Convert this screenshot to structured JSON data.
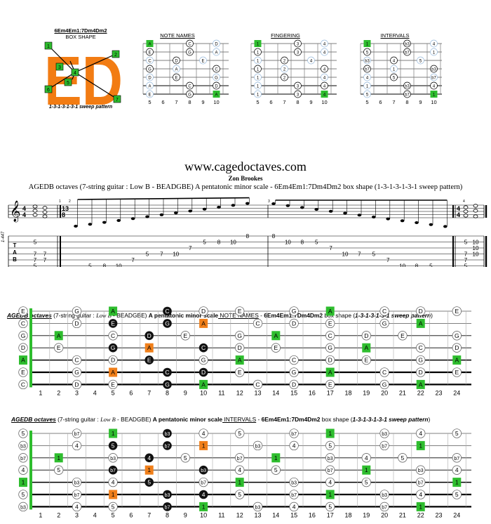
{
  "header": {
    "box_code": "6Em4Em1:7Dm4Dm2",
    "box_shape_label": "BOX SHAPE",
    "sweep_label": "1-3-1-3-1-3-1 sweep pattern",
    "diagram_titles": [
      "NOTE NAMES",
      "FINGERING",
      "INTERVALS"
    ],
    "big_letters": "ED",
    "shape_numbers": [
      "1",
      "2",
      "3",
      "4",
      "5",
      "6",
      "7"
    ]
  },
  "site": {
    "url": "www.cagedoctaves.com",
    "author": "Zon Brookes",
    "subtitle": "AGEDB octaves (7-string guitar : Low B - BEADGBE) A pentatonic minor scale  - 6Em4Em1:7Dm4Dm2 box shape (1-3-1-3-1-3-1 sweep pattern)"
  },
  "staff": {
    "left_label": "1-447",
    "time_4_4": "4/4",
    "time_13_8": "13/8",
    "measure_numbers": [
      "1",
      "2",
      "3",
      "4"
    ],
    "tab_letters": [
      "T",
      "A",
      "B"
    ],
    "tab_m1": [
      {
        "str": 1,
        "fret": "5"
      },
      {
        "str": 3,
        "fret": "7"
      },
      {
        "str": 3,
        "fret": "7",
        "col": 1
      },
      {
        "str": 4,
        "fret": "7"
      },
      {
        "str": 4,
        "fret": "7",
        "col": 1
      },
      {
        "str": 5,
        "fret": "5"
      },
      {
        "str": 6,
        "fret": "10",
        "col": 1
      }
    ],
    "tab_asc": [
      {
        "str": 6,
        "fret": "8"
      },
      {
        "str": 5,
        "fret": "5"
      },
      {
        "str": 5,
        "fret": "8"
      },
      {
        "str": 5,
        "fret": "10"
      },
      {
        "str": 4,
        "fret": "7"
      },
      {
        "str": 3,
        "fret": "5"
      },
      {
        "str": 3,
        "fret": "7"
      },
      {
        "str": 3,
        "fret": "10"
      },
      {
        "str": 2,
        "fret": "7"
      },
      {
        "str": 1,
        "fret": "5"
      },
      {
        "str": 1,
        "fret": "8"
      },
      {
        "str": 1,
        "fret": "10"
      },
      {
        "str": 0,
        "fret": "8"
      }
    ],
    "tab_desc": [
      {
        "str": 0,
        "fret": "8"
      },
      {
        "str": 1,
        "fret": "10"
      },
      {
        "str": 1,
        "fret": "8"
      },
      {
        "str": 1,
        "fret": "5"
      },
      {
        "str": 2,
        "fret": "7"
      },
      {
        "str": 3,
        "fret": "10"
      },
      {
        "str": 3,
        "fret": "7"
      },
      {
        "str": 3,
        "fret": "5"
      },
      {
        "str": 4,
        "fret": "7"
      },
      {
        "str": 5,
        "fret": "10"
      },
      {
        "str": 5,
        "fret": "8"
      },
      {
        "str": 5,
        "fret": "5"
      },
      {
        "str": 6,
        "fret": "8"
      }
    ],
    "tab_m4": [
      {
        "str": 1,
        "fret": "5"
      },
      {
        "str": 1,
        "fret": "10",
        "col": 1
      },
      {
        "str": 2,
        "fret": "10",
        "col": 1
      },
      {
        "str": 3,
        "fret": "7"
      },
      {
        "str": 3,
        "fret": "10",
        "col": 1
      },
      {
        "str": 4,
        "fret": "7"
      },
      {
        "str": 5,
        "fret": "5"
      },
      {
        "str": 6,
        "fret": "10",
        "col": 1
      }
    ]
  },
  "board1": {
    "title_parts": [
      "AGEDB octaves",
      " (7-string guitar : ",
      "Low B",
      " - BEADGBE) ",
      "A pentatonic minor scale",
      " NOTE NAMES",
      " - ",
      "6Em4Em1:7Dm4Dm2",
      " box shape (",
      "1-3-1-3-1-3-1 sweep pattern",
      ")"
    ],
    "open": [
      "E",
      "C",
      "G",
      "D",
      "A",
      "E",
      "C"
    ],
    "rows": [
      {
        "3": "G",
        "5": "A",
        "8": "C",
        "10": "D",
        "12": "E",
        "15": "G",
        "17": "A",
        "20": "C",
        "22": "D",
        "24": "E"
      },
      {
        "3": "D",
        "5": "E",
        "8": "G",
        "10": "A",
        "13": "C",
        "15": "D",
        "17": "E",
        "20": "G",
        "22": "A"
      },
      {
        "2": "A",
        "5": "C",
        "7": "D",
        "9": "E",
        "12": "G",
        "14": "A",
        "17": "C",
        "19": "D",
        "21": "E",
        "24": "G"
      },
      {
        "2": "E",
        "5": "G",
        "7": "A",
        "10": "C",
        "12": "D",
        "14": "E",
        "17": "G",
        "19": "A",
        "22": "C",
        "24": "D"
      },
      {
        "3": "C",
        "5": "D",
        "7": "E",
        "10": "G",
        "12": "A",
        "15": "C",
        "17": "D",
        "19": "E",
        "22": "G",
        "24": "A"
      },
      {
        "3": "G",
        "5": "A",
        "8": "C",
        "10": "D",
        "12": "E",
        "15": "G",
        "17": "A",
        "20": "C",
        "22": "D",
        "24": "E"
      },
      {
        "3": "D",
        "5": "E",
        "8": "G",
        "10": "A",
        "13": "C",
        "15": "D",
        "17": "E",
        "20": "G",
        "22": "A"
      }
    ]
  },
  "board2": {
    "title_parts": [
      "AGEDB octaves",
      " (7-string guitar : ",
      "Low B",
      " - BEADGBE) ",
      "A pentatonic minor scale",
      " INTERVALS",
      " - ",
      "6Em4Em1:7Dm4Dm2",
      " box shape (",
      "1-3-1-3-1-3-1 sweep pattern",
      ")"
    ],
    "open": [
      "5",
      "b3",
      "b7",
      "4",
      "1",
      "5",
      "b3"
    ],
    "rows": [
      {
        "3": "b7",
        "5": "1",
        "8": "b3",
        "10": "4",
        "12": "5",
        "15": "b7",
        "17": "1",
        "20": "b3",
        "22": "4",
        "24": "5"
      },
      {
        "3": "4",
        "5": "5",
        "8": "b7",
        "10": "1",
        "13": "b3",
        "15": "4",
        "17": "5",
        "20": "b7",
        "22": "1"
      },
      {
        "2": "1",
        "5": "b3",
        "7": "4",
        "9": "5",
        "12": "b7",
        "14": "1",
        "17": "b3",
        "19": "4",
        "21": "5",
        "24": "b7"
      },
      {
        "2": "5",
        "5": "b7",
        "7": "1",
        "10": "b3",
        "12": "4",
        "14": "5",
        "17": "b7",
        "19": "1",
        "22": "b3",
        "24": "4"
      },
      {
        "3": "b3",
        "5": "4",
        "7": "5",
        "10": "b7",
        "12": "1",
        "15": "b3",
        "17": "4",
        "19": "5",
        "22": "b7",
        "24": "1"
      },
      {
        "3": "b7",
        "5": "1",
        "8": "b3",
        "10": "4",
        "12": "5",
        "15": "b7",
        "17": "1",
        "20": "b3",
        "22": "4",
        "24": "5"
      },
      {
        "3": "4",
        "5": "5",
        "8": "b7",
        "10": "1",
        "13": "b3",
        "15": "4",
        "17": "5",
        "20": "b7",
        "22": "1"
      }
    ]
  },
  "highlights": {
    "black": [
      [
        0,
        8
      ],
      [
        1,
        5
      ],
      [
        1,
        8
      ],
      [
        2,
        7
      ],
      [
        3,
        5
      ],
      [
        3,
        10
      ],
      [
        4,
        7
      ],
      [
        5,
        8
      ],
      [
        5,
        10
      ],
      [
        6,
        8
      ]
    ],
    "orange": [
      [
        1,
        10
      ],
      [
        3,
        7
      ],
      [
        5,
        5
      ]
    ],
    "green": [
      [
        0,
        5
      ],
      [
        0,
        17
      ],
      [
        1,
        22
      ],
      [
        2,
        2
      ],
      [
        2,
        14
      ],
      [
        3,
        19
      ],
      [
        4,
        0
      ],
      [
        4,
        12
      ],
      [
        4,
        24
      ],
      [
        5,
        17
      ],
      [
        6,
        10
      ],
      [
        6,
        22
      ]
    ]
  },
  "fret_numbers": [
    "1",
    "2",
    "3",
    "4",
    "5",
    "6",
    "7",
    "8",
    "9",
    "10",
    "11",
    "12",
    "13",
    "14",
    "15",
    "16",
    "17",
    "18",
    "19",
    "20",
    "21",
    "22",
    "23",
    "24"
  ],
  "mini_frets": [
    "5",
    "6",
    "7",
    "8",
    "9",
    "10"
  ],
  "colors": {
    "green": "#2ebd2e",
    "orange": "#f07f1a",
    "black": "#111111",
    "brand_orange": "#f27c13"
  }
}
